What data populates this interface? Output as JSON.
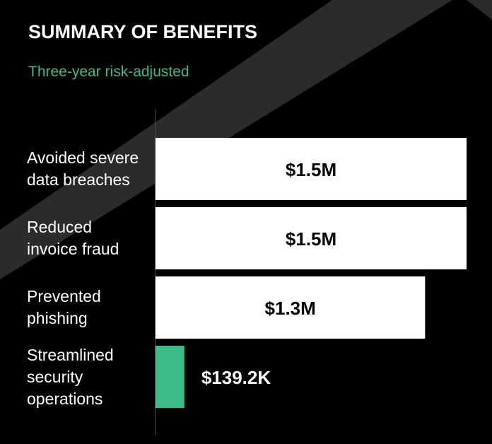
{
  "chart_data": {
    "type": "bar",
    "orientation": "horizontal",
    "title": "SUMMARY OF BENEFITS",
    "subtitle": "Three-year risk-adjusted",
    "categories": [
      "Avoided severe data breaches",
      "Reduced invoice fraud",
      "Prevented phishing",
      "Streamlined security operations"
    ],
    "values": [
      1500000,
      1500000,
      1300000,
      139200
    ],
    "value_labels": [
      "$1.5M",
      "$1.5M",
      "$1.3M",
      "$139.2K"
    ],
    "colors": [
      "#ffffff",
      "#ffffff",
      "#ffffff",
      "#3dbb87"
    ],
    "xlim": [
      0,
      1500000
    ]
  }
}
